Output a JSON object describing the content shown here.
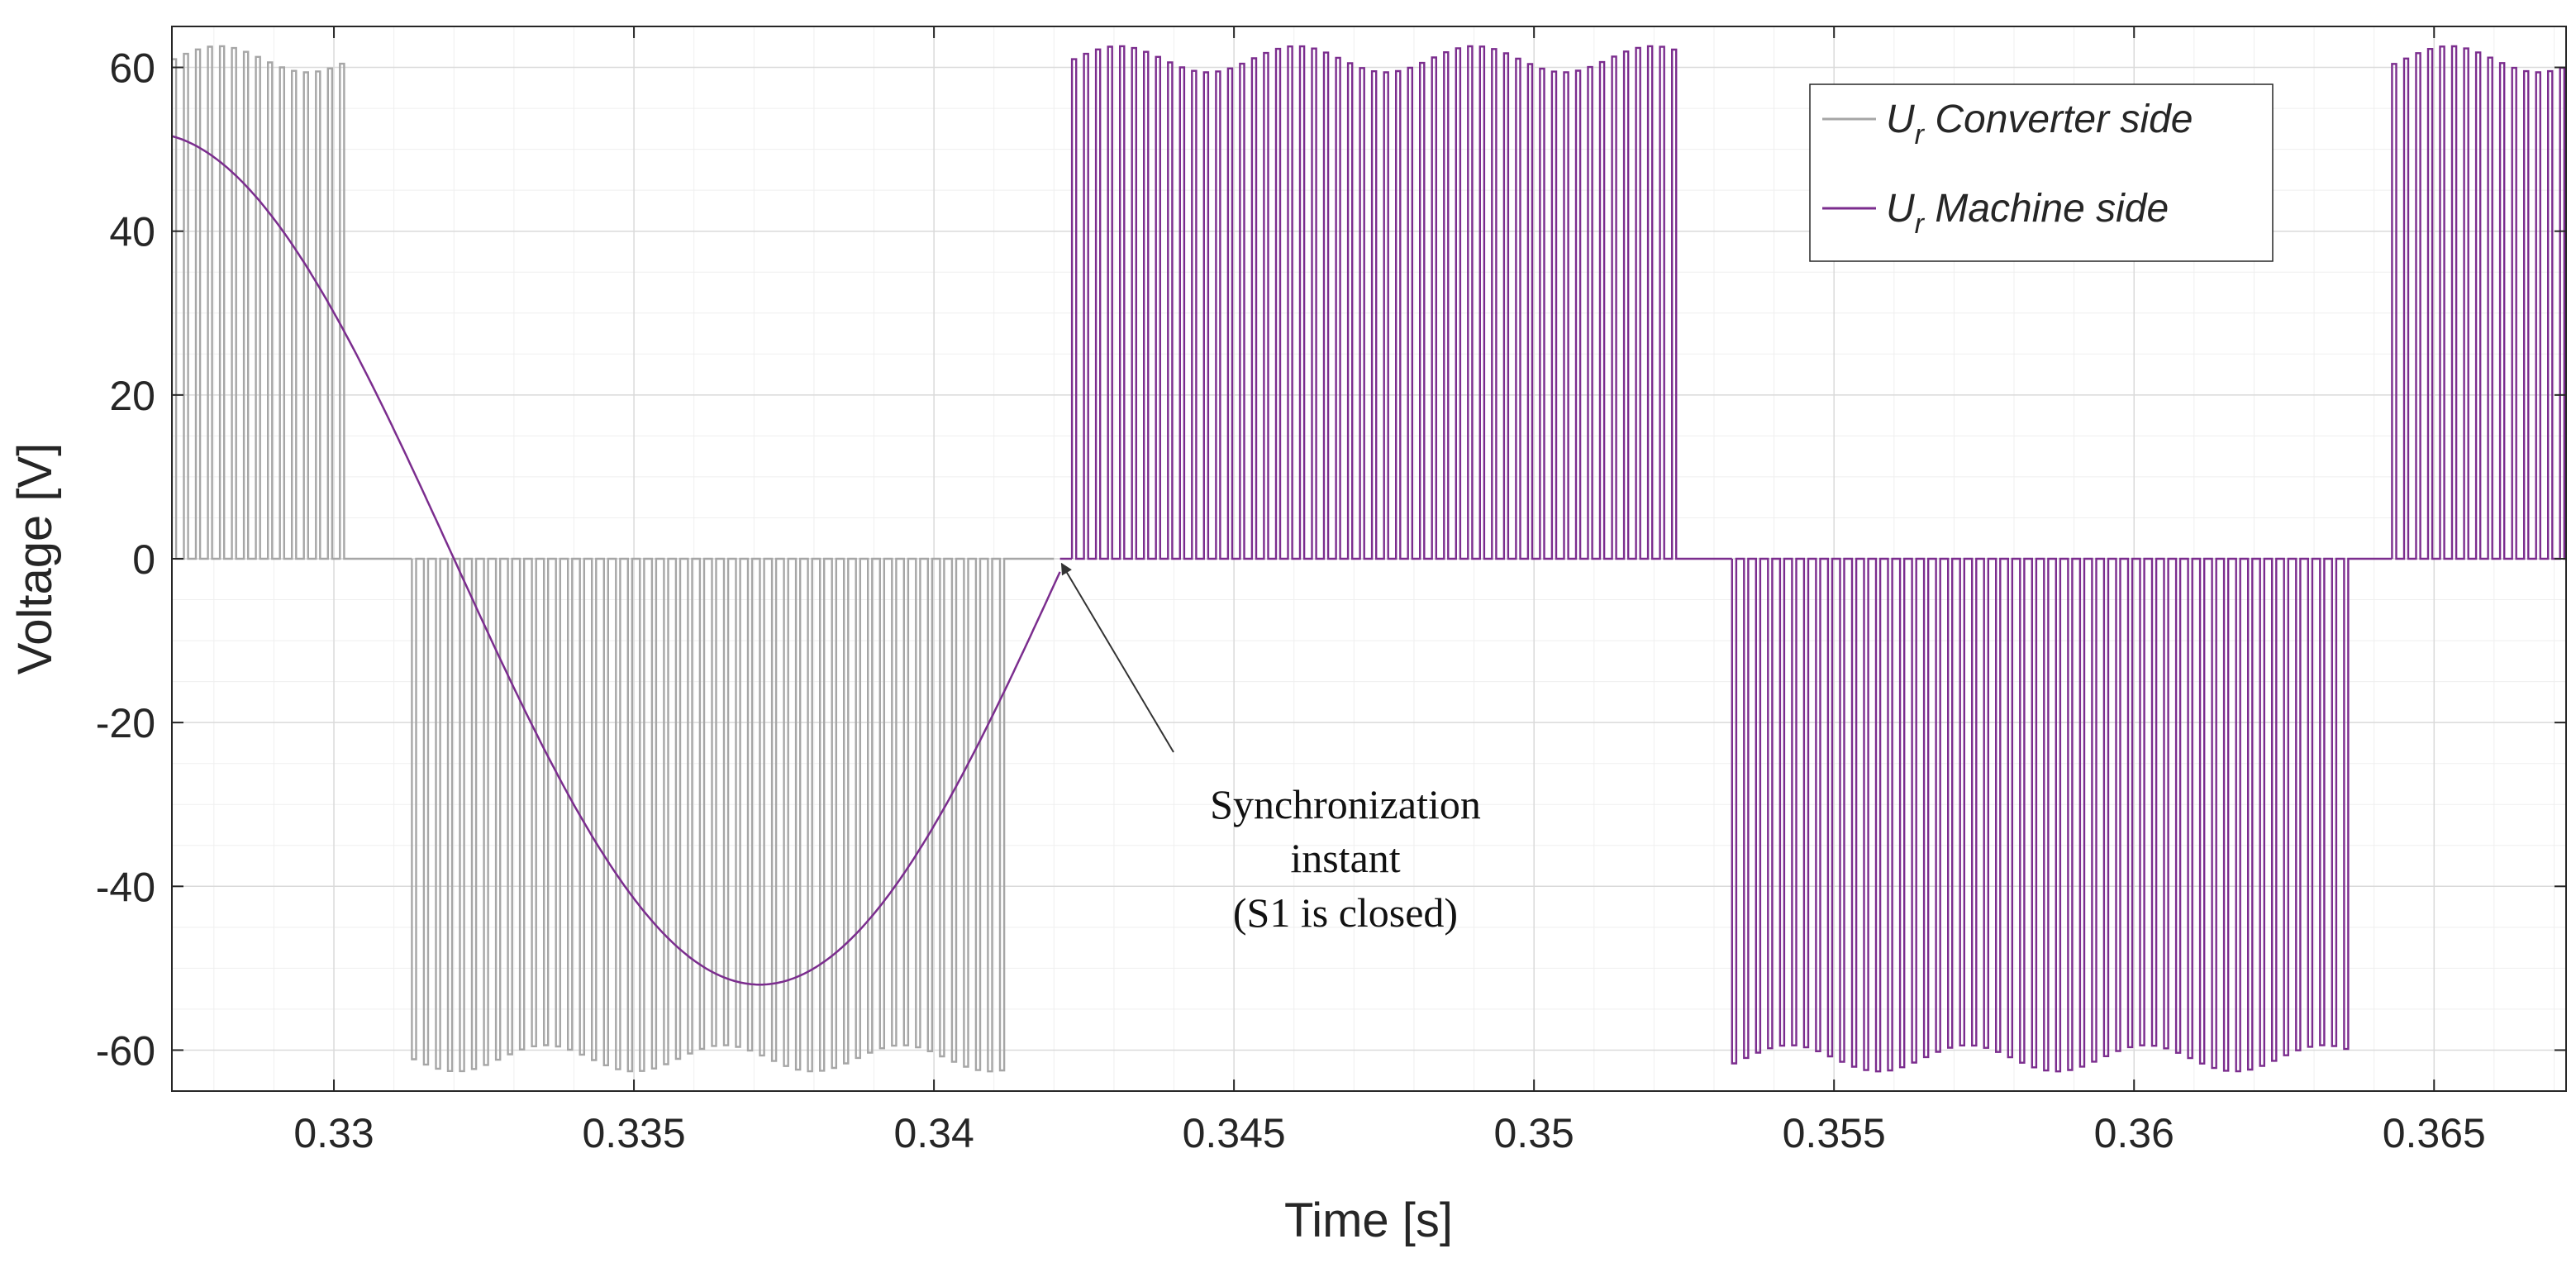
{
  "chart_data": {
    "type": "line",
    "title": "",
    "xlabel": "Time [s]",
    "ylabel": "Voltage [V]",
    "xlim": [
      0.3273,
      0.3672
    ],
    "ylim": [
      -65,
      65
    ],
    "xticks": [
      0.33,
      0.335,
      0.34,
      0.345,
      0.35,
      0.355,
      0.36,
      0.365
    ],
    "xtick_labels": [
      "0.33",
      "0.335",
      "0.34",
      "0.345",
      "0.35",
      "0.355",
      "0.36",
      "0.365"
    ],
    "yticks": [
      -60,
      -40,
      -20,
      0,
      20,
      40,
      60
    ],
    "ytick_labels": [
      "-60",
      "-40",
      "-20",
      "0",
      "20",
      "40",
      "60"
    ],
    "grid": true,
    "minor_grid": true,
    "legend_location": "top-right",
    "series": [
      {
        "name": "U_r Converter side",
        "legend_main": "U",
        "legend_sub": "r",
        "legend_rest": " Converter side",
        "color": "#a6a6a6",
        "kind": "pwm",
        "switching_period": 0.0002,
        "segments": [
          {
            "x_start": 0.3273,
            "x_end": 0.3303,
            "level": 61
          },
          {
            "x_start": 0.3303,
            "x_end": 0.3313,
            "level": 0
          },
          {
            "x_start": 0.3313,
            "x_end": 0.3413,
            "level": -61
          },
          {
            "x_start": 0.3413,
            "x_end": 0.342,
            "level": 0
          }
        ]
      },
      {
        "name": "U_r Machine side",
        "legend_main": "U",
        "legend_sub": "r",
        "legend_rest": " Machine side",
        "color": "#7b2d8e",
        "kind": "sine_then_pwm",
        "sine": {
          "amplitude": 52,
          "period": 0.0204,
          "peak_time": 0.3269,
          "x_start": 0.3273,
          "x_end": 0.3421
        },
        "switching_period": 0.0002,
        "segments": [
          {
            "x_start": 0.3421,
            "x_end": 0.3423,
            "level": 0
          },
          {
            "x_start": 0.3423,
            "x_end": 0.3525,
            "level": 61
          },
          {
            "x_start": 0.3525,
            "x_end": 0.3533,
            "level": 0
          },
          {
            "x_start": 0.3533,
            "x_end": 0.3636,
            "level": -61
          },
          {
            "x_start": 0.3636,
            "x_end": 0.3643,
            "level": 0
          },
          {
            "x_start": 0.3643,
            "x_end": 0.3672,
            "level": 61
          }
        ]
      }
    ],
    "annotation": {
      "lines": [
        "Synchronization",
        "instant",
        "(S1 is closed)"
      ],
      "arrow_target": [
        0.3421,
        0
      ]
    }
  }
}
